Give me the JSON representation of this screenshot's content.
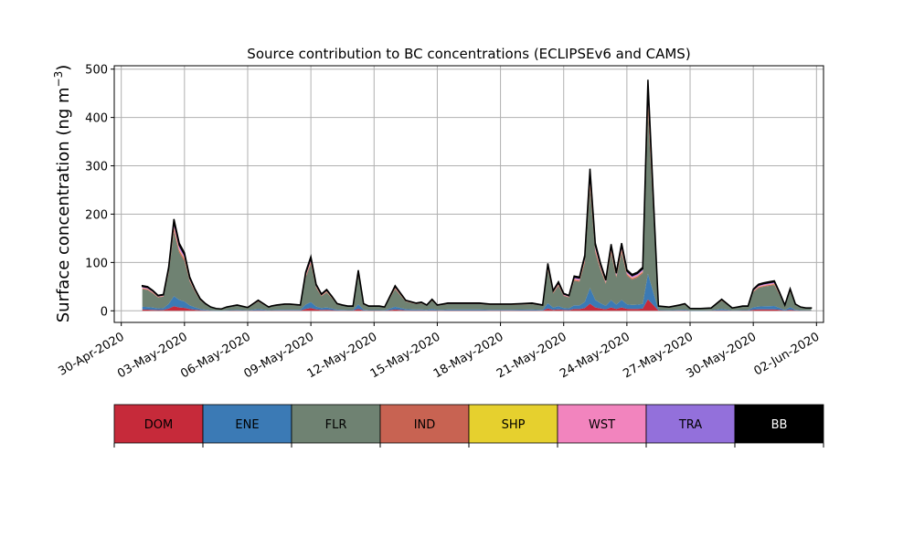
{
  "chart_data": {
    "type": "area",
    "stacked": true,
    "title": "Source contribution to BC concentrations (ECLIPSEv6 and CAMS)",
    "ylabel": "Surface concentration (ng m",
    "ylabel_unit_exponent": "−3",
    "ylabel_close": ")",
    "xaxis_type": "date",
    "xlim": [
      "2020-04-29T16:00",
      "2020-06-02T08:00"
    ],
    "ylim": [
      -24,
      507
    ],
    "grid": true,
    "x_ticks": [
      "2020-04-30",
      "2020-05-03",
      "2020-05-06",
      "2020-05-09",
      "2020-05-12",
      "2020-05-15",
      "2020-05-18",
      "2020-05-21",
      "2020-05-24",
      "2020-05-27",
      "2020-05-30",
      "2020-06-02"
    ],
    "x_tick_labels": [
      "30-Apr-2020",
      "03-May-2020",
      "06-May-2020",
      "09-May-2020",
      "12-May-2020",
      "15-May-2020",
      "18-May-2020",
      "21-May-2020",
      "24-May-2020",
      "27-May-2020",
      "30-May-2020",
      "02-Jun-2020"
    ],
    "y_ticks": [
      0,
      100,
      200,
      300,
      400,
      500
    ],
    "y_tick_labels": [
      "0",
      "100",
      "200",
      "300",
      "400",
      "500"
    ],
    "legend_placement": "colorbar below plot",
    "total_profile": {
      "x": [
        "2020-05-01T00:00",
        "2020-05-01T06:00",
        "2020-05-01T12:00",
        "2020-05-01T18:00",
        "2020-05-02T00:00",
        "2020-05-02T06:00",
        "2020-05-02T12:00",
        "2020-05-02T18:00",
        "2020-05-03T00:00",
        "2020-05-03T06:00",
        "2020-05-03T12:00",
        "2020-05-03T18:00",
        "2020-05-04T00:00",
        "2020-05-04T06:00",
        "2020-05-04T12:00",
        "2020-05-04T18:00",
        "2020-05-05T00:00",
        "2020-05-05T12:00",
        "2020-05-06T00:00",
        "2020-05-06T12:00",
        "2020-05-07T00:00",
        "2020-05-07T03:00",
        "2020-05-07T09:00",
        "2020-05-07T18:00",
        "2020-05-08T00:00",
        "2020-05-08T12:00",
        "2020-05-08T18:00",
        "2020-05-09T00:00",
        "2020-05-09T06:00",
        "2020-05-09T12:00",
        "2020-05-09T18:00",
        "2020-05-10T00:00",
        "2020-05-10T06:00",
        "2020-05-10T12:00",
        "2020-05-10T18:00",
        "2020-05-11T00:00",
        "2020-05-11T06:00",
        "2020-05-11T12:00",
        "2020-05-11T18:00",
        "2020-05-12T00:00",
        "2020-05-12T06:00",
        "2020-05-12T12:00",
        "2020-05-13T00:00",
        "2020-05-13T12:00",
        "2020-05-14T00:00",
        "2020-05-14T06:00",
        "2020-05-14T12:00",
        "2020-05-14T18:00",
        "2020-05-15T00:00",
        "2020-05-15T06:00",
        "2020-05-15T12:00",
        "2020-05-15T18:00",
        "2020-05-16T00:00",
        "2020-05-16T12:00",
        "2020-05-17T00:00",
        "2020-05-17T12:00",
        "2020-05-18T00:00",
        "2020-05-18T12:00",
        "2020-05-19T00:00",
        "2020-05-19T12:00",
        "2020-05-20T00:00",
        "2020-05-20T06:00",
        "2020-05-20T12:00",
        "2020-05-20T18:00",
        "2020-05-21T00:00",
        "2020-05-21T06:00",
        "2020-05-21T12:00",
        "2020-05-21T18:00",
        "2020-05-22T00:00",
        "2020-05-22T06:00",
        "2020-05-22T12:00",
        "2020-05-22T18:00",
        "2020-05-23T00:00",
        "2020-05-23T06:00",
        "2020-05-23T12:00",
        "2020-05-23T18:00",
        "2020-05-24T00:00",
        "2020-05-24T06:00",
        "2020-05-24T12:00",
        "2020-05-24T18:00",
        "2020-05-25T00:00",
        "2020-05-25T12:00",
        "2020-05-26T00:00",
        "2020-05-26T12:00",
        "2020-05-26T18:00",
        "2020-05-27T00:00",
        "2020-05-27T12:00",
        "2020-05-28T00:00",
        "2020-05-28T12:00",
        "2020-05-29T00:00",
        "2020-05-29T06:00",
        "2020-05-29T12:00",
        "2020-05-29T18:00",
        "2020-05-30T00:00",
        "2020-05-30T06:00",
        "2020-05-30T12:00",
        "2020-05-30T18:00",
        "2020-05-31T00:00",
        "2020-05-31T06:00",
        "2020-05-31T12:00",
        "2020-05-31T18:00",
        "2020-06-01T00:00",
        "2020-06-01T06:00",
        "2020-06-01T12:00",
        "2020-06-01T18:00"
      ],
      "y": [
        52,
        50,
        42,
        32,
        34,
        90,
        190,
        140,
        120,
        70,
        45,
        25,
        15,
        8,
        5,
        4,
        8,
        12,
        7,
        22,
        8,
        10,
        12,
        14,
        14,
        12,
        80,
        112,
        55,
        35,
        44,
        30,
        15,
        12,
        10,
        10,
        84,
        15,
        10,
        10,
        10,
        8,
        52,
        22,
        16,
        18,
        12,
        24,
        12,
        14,
        16,
        16,
        16,
        16,
        16,
        14,
        14,
        14,
        15,
        16,
        12,
        98,
        42,
        60,
        36,
        32,
        72,
        70,
        115,
        294,
        140,
        98,
        65,
        138,
        80,
        140,
        85,
        75,
        80,
        90,
        478,
        10,
        8,
        12,
        15,
        5,
        5,
        6,
        24,
        6,
        8,
        10,
        10,
        45,
        55,
        58,
        60,
        62,
        38,
        12,
        46,
        14,
        8,
        6,
        6
      ]
    },
    "stack_fractions": {
      "series": [
        "DOM",
        "ENE",
        "FLR",
        "IND",
        "SHP",
        "WST",
        "TRA",
        "BB"
      ],
      "values": [
        0.05,
        0.11,
        0.7,
        0.03,
        0.01,
        0.03,
        0.04,
        0.03
      ]
    },
    "legend": {
      "entries": [
        {
          "name": "DOM",
          "color": "#c62a3a"
        },
        {
          "name": "ENE",
          "color": "#3b7ab5"
        },
        {
          "name": "FLR",
          "color": "#6f8272"
        },
        {
          "name": "IND",
          "color": "#c86352"
        },
        {
          "name": "SHP",
          "color": "#e6d02e"
        },
        {
          "name": "WST",
          "color": "#f284be"
        },
        {
          "name": "TRA",
          "color": "#9370db"
        },
        {
          "name": "BB",
          "color": "#000000"
        }
      ]
    }
  }
}
